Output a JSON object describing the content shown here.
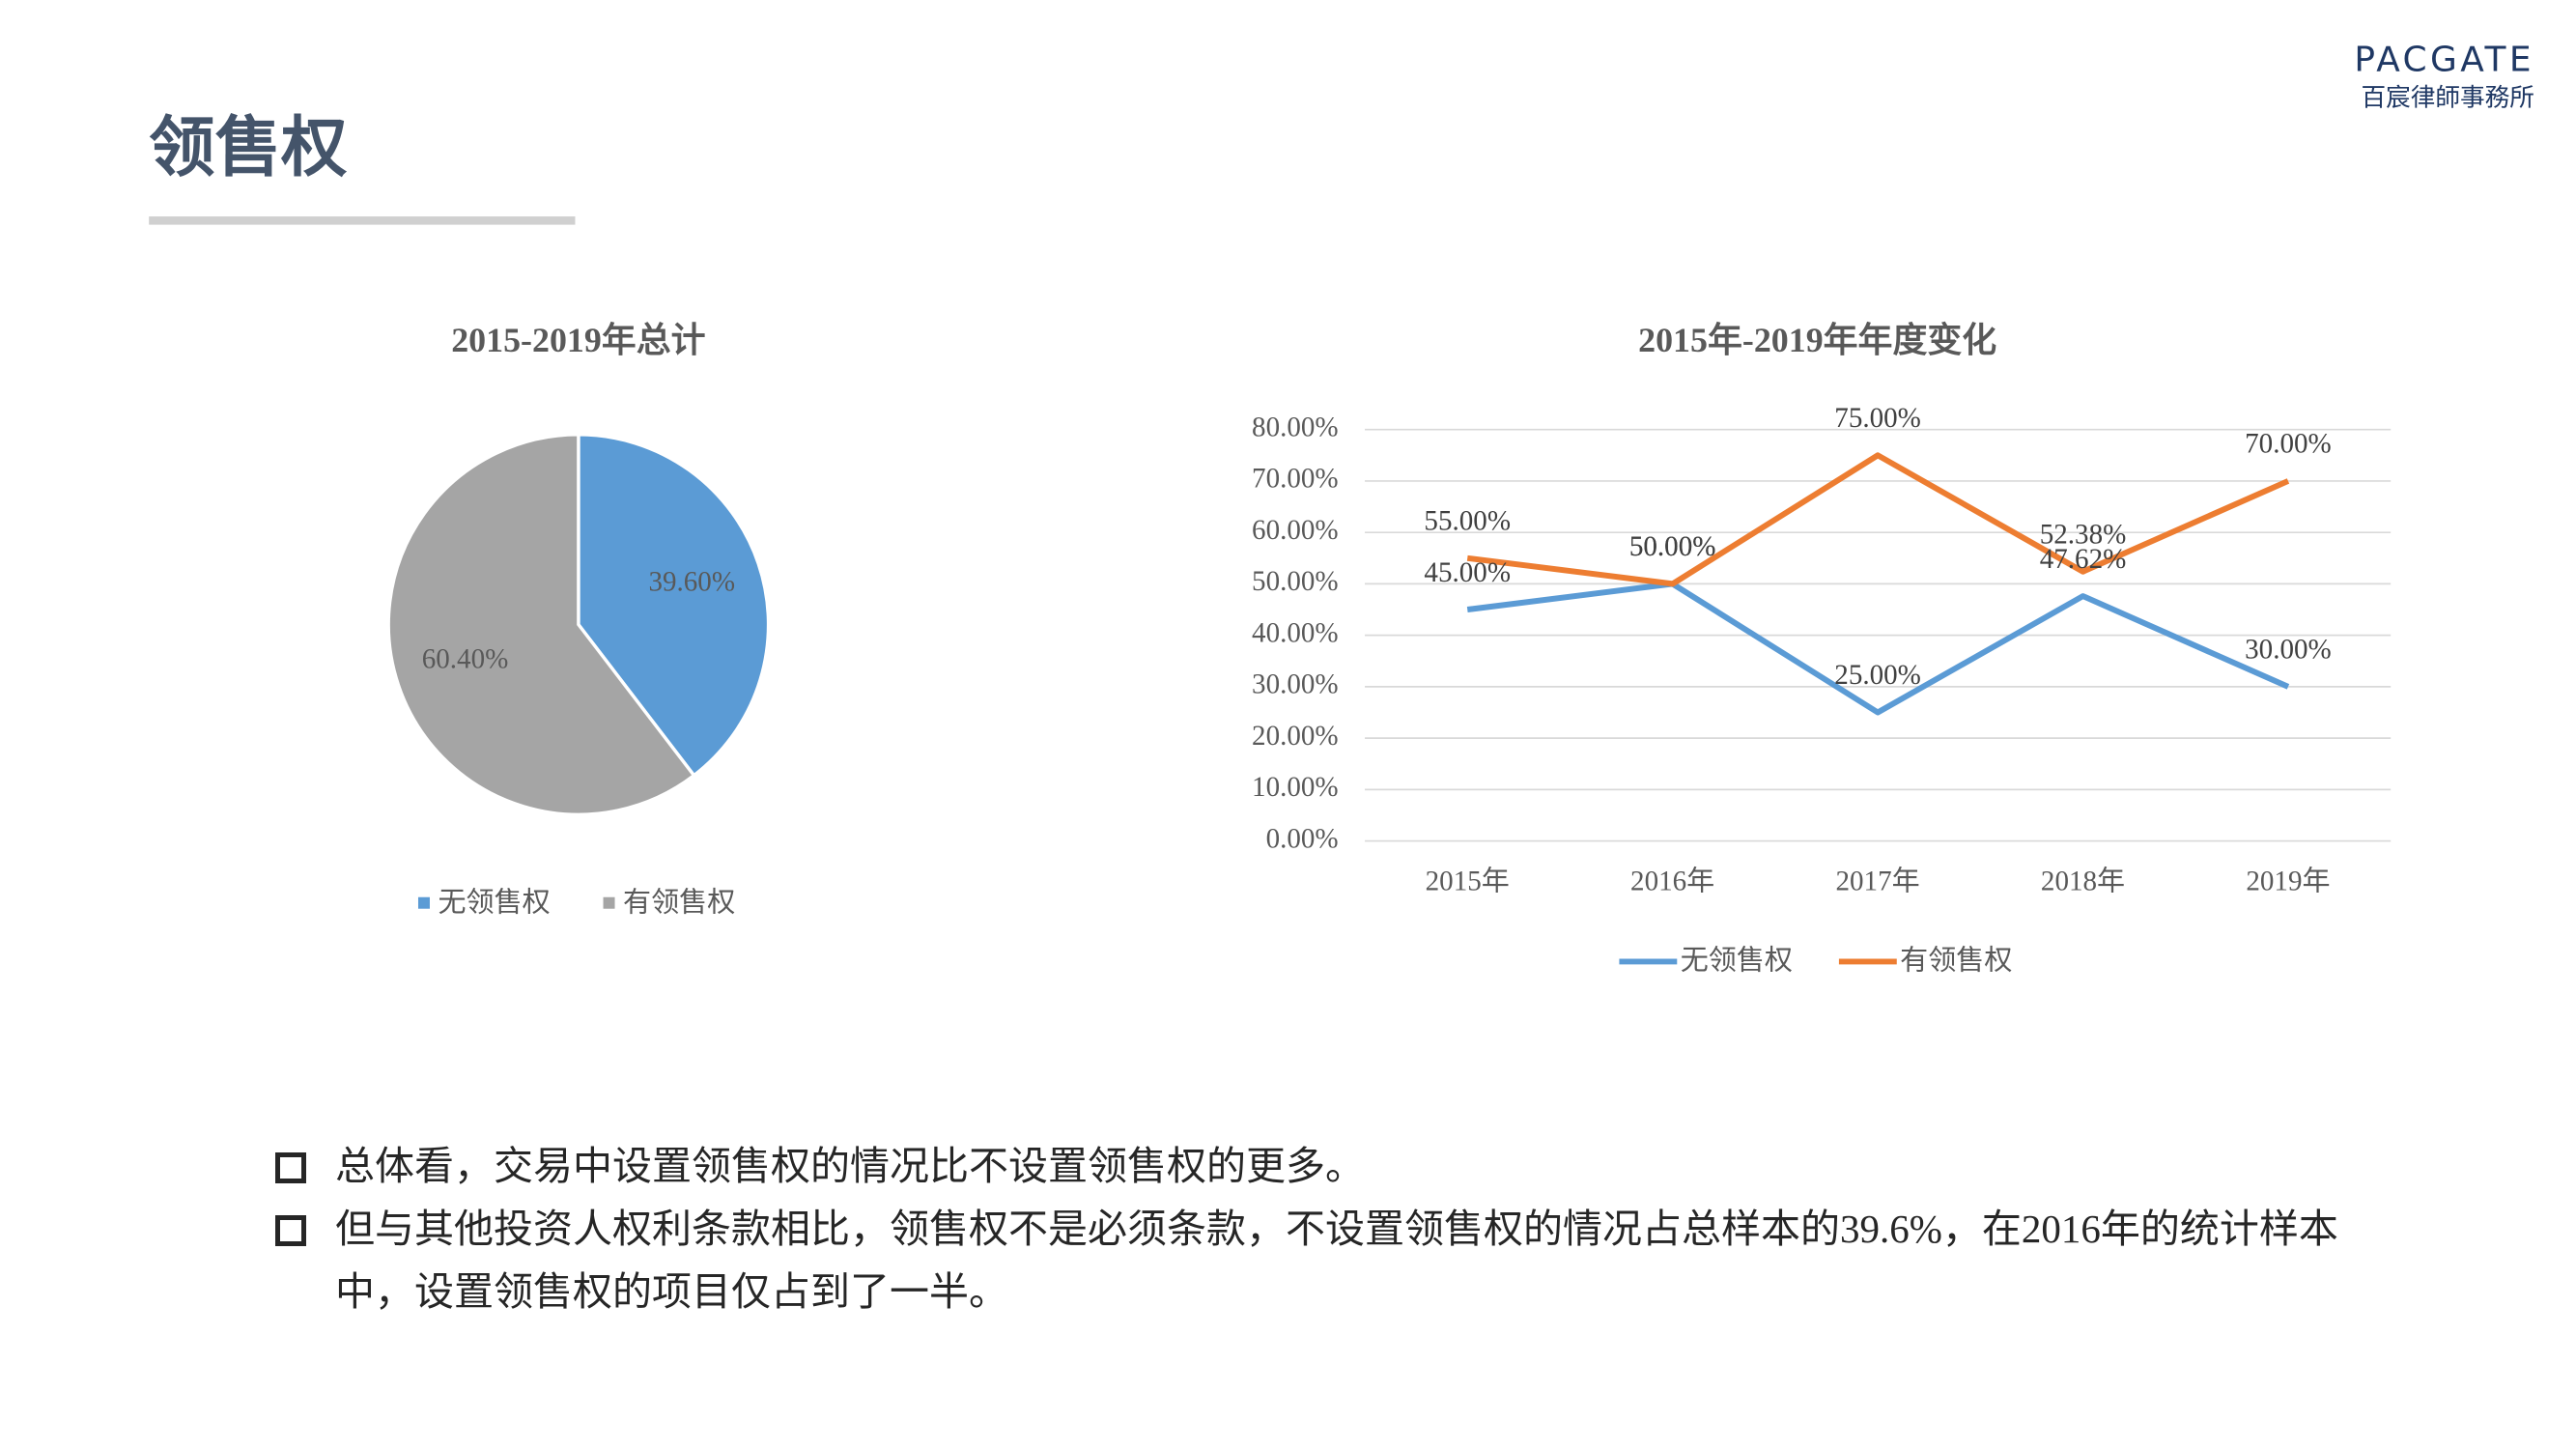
{
  "header": {
    "title": "领售权",
    "logo": "PACGATE",
    "logo_sub": "百宸律師事務所"
  },
  "chart_data": [
    {
      "type": "pie",
      "title": "2015-2019年总计",
      "categories": [
        "无领售权",
        "有领售权"
      ],
      "values": [
        39.6,
        60.4
      ],
      "value_labels": [
        "39.60%",
        "60.40%"
      ],
      "colors": [
        "#5b9bd5",
        "#a5a5a5"
      ],
      "legend": "bottom"
    },
    {
      "type": "line",
      "title": "2015年-2019年年度变化",
      "categories": [
        "2015年",
        "2016年",
        "2017年",
        "2018年",
        "2019年"
      ],
      "series": [
        {
          "name": "无领售权",
          "color": "#5b9bd5",
          "values": [
            45,
            50,
            25,
            47.62,
            30
          ],
          "value_labels": [
            "45.00%",
            "50.00%",
            "25.00%",
            "47.62%",
            "30.00%"
          ]
        },
        {
          "name": "有领售权",
          "color": "#ed7d31",
          "values": [
            55,
            50,
            75,
            52.38,
            70
          ],
          "value_labels": [
            "55.00%",
            "50.00%",
            "75.00%",
            "52.38%",
            "70.00%"
          ]
        }
      ],
      "ylim": [
        0,
        80
      ],
      "yticks": [
        {
          "value": 0,
          "label": "0.00%"
        },
        {
          "value": 10,
          "label": "10.00%"
        },
        {
          "value": 20,
          "label": "20.00%"
        },
        {
          "value": 30,
          "label": "30.00%"
        },
        {
          "value": 40,
          "label": "40.00%"
        },
        {
          "value": 50,
          "label": "50.00%"
        },
        {
          "value": 60,
          "label": "60.00%"
        },
        {
          "value": 70,
          "label": "70.00%"
        },
        {
          "value": 80,
          "label": "80.00%"
        }
      ],
      "grid": true,
      "legend": "bottom"
    }
  ],
  "bullets": [
    "总体看，交易中设置领售权的情况比不设置领售权的更多。",
    "但与其他投资人权利条款相比，领售权不是必须条款，不设置领售权的情况占总样本的39.6%，在2016年的统计样本中，设置领售权的项目仅占到了一半。"
  ]
}
